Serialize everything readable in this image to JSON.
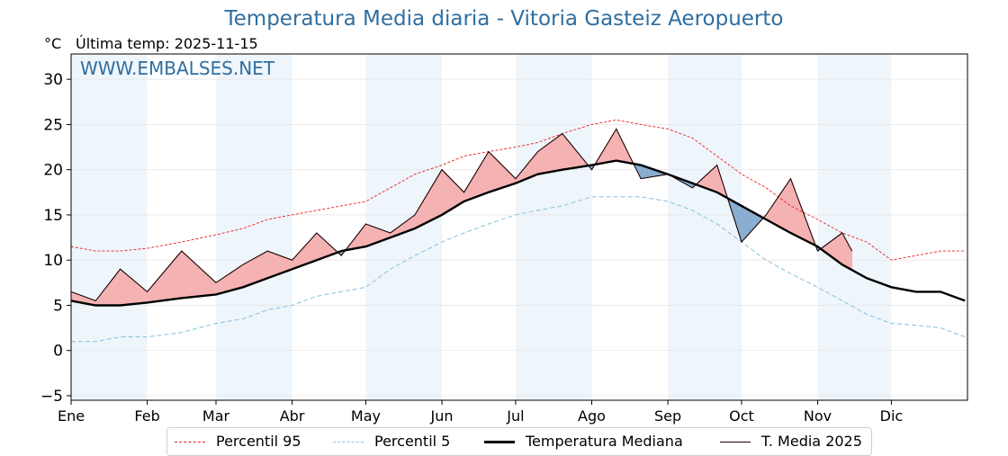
{
  "header": {
    "title": "Temperatura Media diaria - Vitoria Gasteiz Aeropuerto",
    "unit": "°C",
    "last_temp": "Última temp: 2025-11-15",
    "watermark": "WWW.EMBALSES.NET"
  },
  "colors": {
    "p95": "#e8211d",
    "p5": "#8fc6df",
    "median": "#000000",
    "current": "#1a0000",
    "above_fill": "#f5b2b2",
    "above_strong": "#ee6666",
    "below_fill": "#8aaed0",
    "below_strong": "#2a64a0",
    "band": "#eef5fb",
    "title": "#2f6ea0"
  },
  "legend": [
    {
      "key": "p95",
      "label": "Percentil 95"
    },
    {
      "key": "p5",
      "label": "Percentil 5"
    },
    {
      "key": "median",
      "label": "Temperatura Mediana"
    },
    {
      "key": "current",
      "label": "T. Media 2025"
    }
  ],
  "chart_data": {
    "type": "line",
    "title": "Temperatura Media diaria - Vitoria Gasteiz Aeropuerto",
    "ylabel": "°C",
    "ylim": [
      -5.5,
      32.8
    ],
    "xlim": [
      0,
      365
    ],
    "yticks": [
      -5,
      0,
      5,
      10,
      15,
      20,
      25,
      30
    ],
    "ytick_labels": [
      "−5",
      "0",
      "5",
      "10",
      "15",
      "20",
      "25",
      "30"
    ],
    "months": [
      {
        "label": "Ene",
        "day": 0
      },
      {
        "label": "Feb",
        "day": 31
      },
      {
        "label": "Mar",
        "day": 59
      },
      {
        "label": "Abr",
        "day": 90
      },
      {
        "label": "May",
        "day": 120
      },
      {
        "label": "Jun",
        "day": 151
      },
      {
        "label": "Jul",
        "day": 181
      },
      {
        "label": "Ago",
        "day": 212
      },
      {
        "label": "Sep",
        "day": 243
      },
      {
        "label": "Oct",
        "day": 273
      },
      {
        "label": "Nov",
        "day": 304
      },
      {
        "label": "Dic",
        "day": 334
      }
    ],
    "grid": true,
    "series_x": [
      0,
      10,
      20,
      31,
      45,
      59,
      70,
      80,
      90,
      100,
      110,
      120,
      130,
      140,
      151,
      160,
      170,
      181,
      190,
      200,
      212,
      222,
      232,
      243,
      253,
      263,
      273,
      283,
      293,
      304,
      314,
      324,
      334,
      344,
      354,
      364
    ],
    "series": [
      {
        "name": "Percentil 95",
        "key": "p95",
        "values": [
          11.5,
          11,
          11,
          11.3,
          12,
          12.8,
          13.5,
          14.5,
          15,
          15.5,
          16,
          16.5,
          18,
          19.5,
          20.5,
          21.5,
          22,
          22.5,
          23,
          24,
          25,
          25.5,
          25,
          24.5,
          23.5,
          21.5,
          19.5,
          18,
          16,
          14.5,
          13,
          12,
          10,
          10.5,
          11,
          11
        ]
      },
      {
        "name": "Percentil 5",
        "key": "p5",
        "values": [
          1,
          1,
          1.5,
          1.5,
          2,
          3,
          3.5,
          4.5,
          5,
          6,
          6.5,
          7,
          9,
          10.5,
          12,
          13,
          14,
          15,
          15.5,
          16,
          17,
          17,
          17,
          16.5,
          15.5,
          14,
          12,
          10,
          8.5,
          7,
          5.5,
          4,
          3,
          2.8,
          2.5,
          1.5
        ]
      },
      {
        "name": "Temperatura Mediana",
        "key": "median",
        "values": [
          5.5,
          5,
          5,
          5.3,
          5.8,
          6.2,
          7,
          8,
          9,
          10,
          11,
          11.5,
          12.5,
          13.5,
          15,
          16.5,
          17.5,
          18.5,
          19.5,
          20,
          20.5,
          21,
          20.5,
          19.5,
          18.5,
          17.5,
          16,
          14.5,
          13,
          11.5,
          9.5,
          8,
          7,
          6.5,
          6.5,
          5.5
        ]
      },
      {
        "name": "T. Media 2025",
        "key": "current",
        "values": [
          6.5,
          5.5,
          9,
          6.5,
          11,
          7.5,
          9.5,
          11,
          10,
          13,
          10.5,
          14,
          13,
          15,
          20,
          17.5,
          22,
          19,
          22,
          24,
          20,
          24.5,
          19,
          19.5,
          18,
          20.5,
          12,
          15,
          19,
          11,
          13,
          11
        ],
        "x": [
          0,
          10,
          20,
          31,
          45,
          59,
          70,
          80,
          90,
          100,
          110,
          120,
          130,
          140,
          151,
          160,
          170,
          181,
          190,
          200,
          212,
          222,
          232,
          243,
          253,
          263,
          273,
          283,
          293,
          304,
          314,
          318
        ]
      }
    ]
  }
}
